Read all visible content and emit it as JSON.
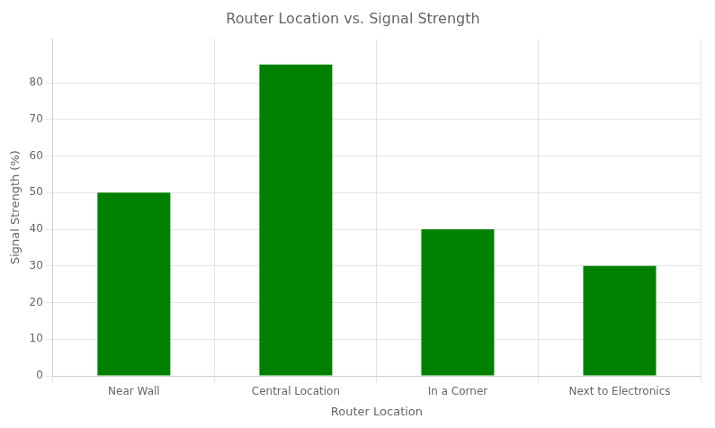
{
  "chart_data": {
    "type": "bar",
    "title": "Router Location vs. Signal Strength",
    "xlabel": "Router Location",
    "ylabel": "Signal Strength (%)",
    "categories": [
      "Near Wall",
      "Central Location",
      "In a Corner",
      "Next to Electronics"
    ],
    "values": [
      50,
      85,
      40,
      30
    ],
    "color": "#008000",
    "ylim": [
      0,
      92
    ],
    "yticks": [
      0,
      10,
      20,
      30,
      40,
      50,
      60,
      70,
      80
    ],
    "grid": true
  }
}
